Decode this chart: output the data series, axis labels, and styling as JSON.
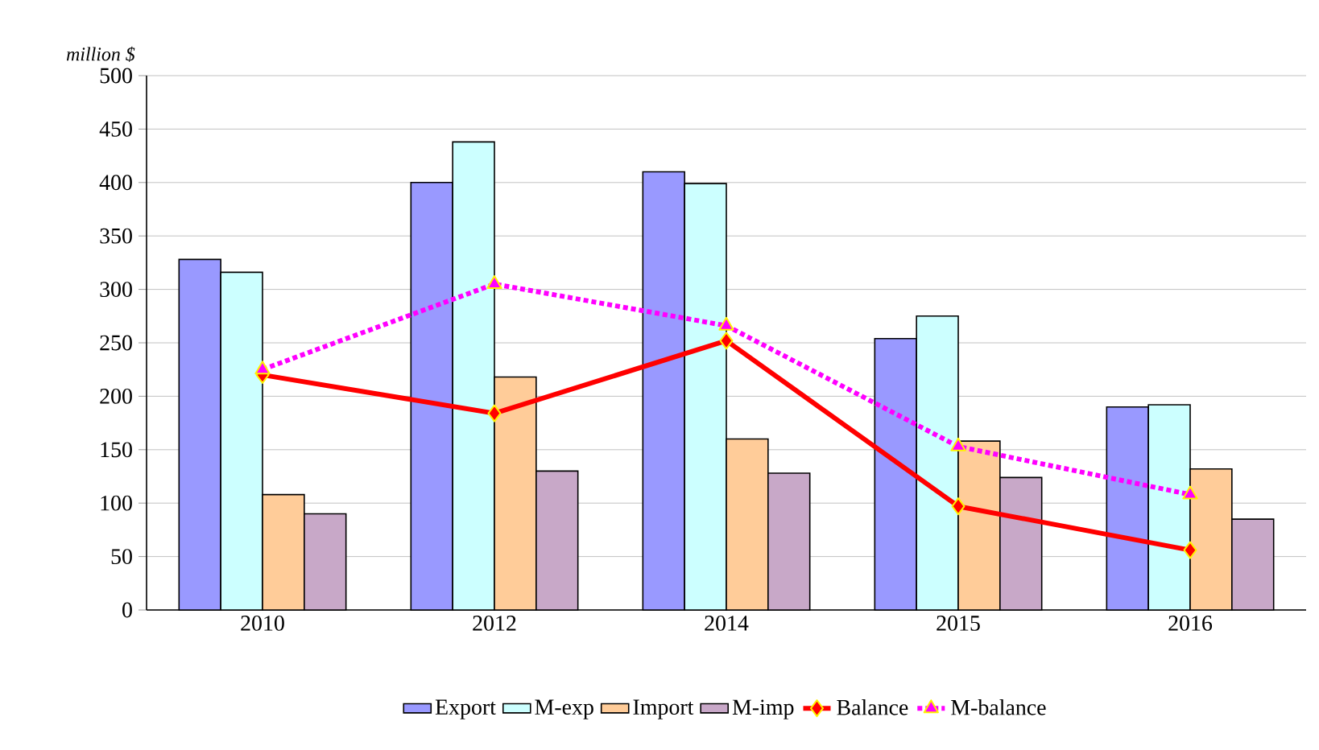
{
  "chart_data": {
    "type": "bar",
    "ylabel": "million $",
    "categories": [
      "2010",
      "2012",
      "2014",
      "2015",
      "2016"
    ],
    "series": [
      {
        "name": "Export",
        "color": "#9999ff",
        "values": [
          328,
          400,
          410,
          254,
          190
        ]
      },
      {
        "name": "M-exp",
        "color": "#ccffff",
        "values": [
          316,
          438,
          399,
          275,
          192
        ]
      },
      {
        "name": "Import",
        "color": "#ffcc99",
        "values": [
          108,
          218,
          160,
          158,
          132
        ]
      },
      {
        "name": "M-imp",
        "color": "#c8a8c8",
        "values": [
          90,
          130,
          128,
          124,
          85
        ]
      },
      {
        "name": "Balance",
        "type": "line",
        "color": "#ff0000",
        "marker": "diamond",
        "line_style": "solid",
        "values": [
          220,
          184,
          252,
          97,
          56
        ]
      },
      {
        "name": "M-balance",
        "type": "line",
        "color": "#ff00ff",
        "marker": "triangle",
        "line_style": "dotted",
        "values": [
          225,
          305,
          266,
          153,
          108
        ]
      }
    ],
    "ylim": [
      0,
      500
    ],
    "yticks": [
      0,
      50,
      100,
      150,
      200,
      250,
      300,
      350,
      400,
      450,
      500
    ],
    "grid": "y",
    "legend": "bottom"
  }
}
